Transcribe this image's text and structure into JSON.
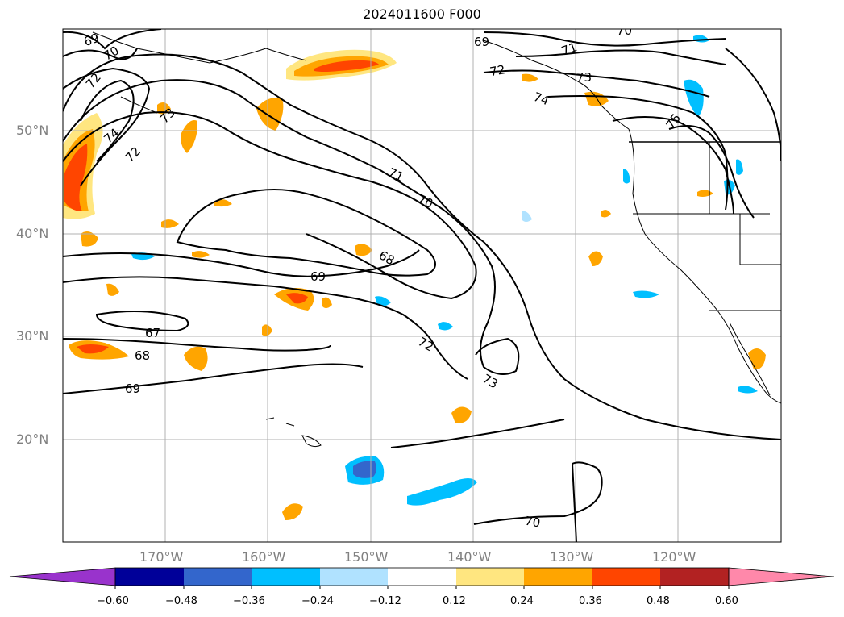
{
  "title": "2024011600 F000",
  "lat_labels": [
    "50°N",
    "40°N",
    "30°N",
    "20°N"
  ],
  "lon_labels": [
    "170°W",
    "160°W",
    "150°W",
    "140°W",
    "130°W",
    "120°W"
  ],
  "contour_labels": [
    "69",
    "70",
    "72",
    "73",
    "74",
    "72",
    "71",
    "70",
    "69",
    "68",
    "67",
    "68",
    "69",
    "72",
    "73",
    "70",
    "69",
    "71",
    "72",
    "73",
    "74",
    "75",
    "70"
  ],
  "colorbar": {
    "ticks": [
      "−0.60",
      "−0.48",
      "−0.36",
      "−0.24",
      "−0.12",
      "0.12",
      "0.24",
      "0.36",
      "0.48",
      "0.60"
    ],
    "colors": [
      "#9933cc",
      "#000099",
      "#3366cc",
      "#00bfff",
      "#b0e2ff",
      "#ffffff",
      "#ffe680",
      "#ffa500",
      "#ff4500",
      "#b22222",
      "#ff88aa"
    ]
  },
  "map_extent": {
    "lon_min": -180,
    "lon_max": -110,
    "lat_min": 10,
    "lat_max": 60
  }
}
